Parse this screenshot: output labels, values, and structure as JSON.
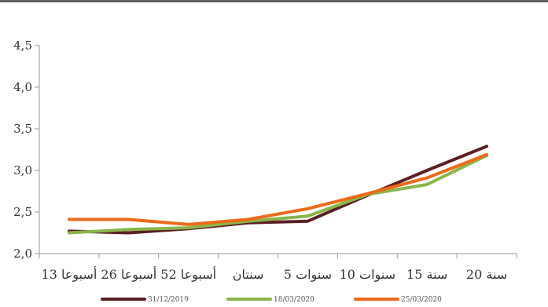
{
  "chart_data": {
    "type": "line",
    "categories": [
      "13 أسبوعا",
      "26 أسبوعا",
      "52 أسبوعا",
      "سنتان",
      "5 سنوات",
      "10 سنوات",
      "15 سنة",
      "20 سنة"
    ],
    "y_ticks": [
      "2,0",
      "2,5",
      "3,0",
      "3,5",
      "4,0",
      "4,5"
    ],
    "ylim": [
      2.0,
      4.5
    ],
    "grid": false,
    "legend_position": "bottom",
    "series": [
      {
        "name": "31/12/2019",
        "color": "#5b1f23",
        "values": [
          2.27,
          2.25,
          2.3,
          2.37,
          2.39,
          2.7,
          3.0,
          3.29
        ]
      },
      {
        "name": "18/03/2020",
        "color": "#8ab54a",
        "values": [
          2.25,
          2.29,
          2.31,
          2.39,
          2.45,
          2.71,
          2.83,
          3.18
        ]
      },
      {
        "name": "25/03/2020",
        "color": "#ec6a1a",
        "values": [
          2.41,
          2.41,
          2.35,
          2.41,
          2.54,
          2.72,
          2.91,
          3.19
        ]
      }
    ]
  }
}
